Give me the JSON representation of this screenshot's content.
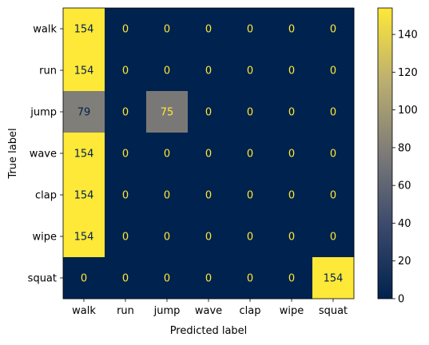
{
  "chart_data": {
    "type": "heatmap",
    "title": "",
    "xlabel": "Predicted label",
    "ylabel": "True label",
    "x_categories": [
      "walk",
      "run",
      "jump",
      "wave",
      "clap",
      "wipe",
      "squat"
    ],
    "y_categories": [
      "walk",
      "run",
      "jump",
      "wave",
      "clap",
      "wipe",
      "squat"
    ],
    "values": [
      [
        154,
        0,
        0,
        0,
        0,
        0,
        0
      ],
      [
        154,
        0,
        0,
        0,
        0,
        0,
        0
      ],
      [
        79,
        0,
        75,
        0,
        0,
        0,
        0
      ],
      [
        154,
        0,
        0,
        0,
        0,
        0,
        0
      ],
      [
        154,
        0,
        0,
        0,
        0,
        0,
        0
      ],
      [
        154,
        0,
        0,
        0,
        0,
        0,
        0
      ],
      [
        0,
        0,
        0,
        0,
        0,
        0,
        154
      ]
    ],
    "colormap": "cividis",
    "color_range": [
      0,
      154
    ],
    "colorbar_ticks": [
      0,
      20,
      40,
      60,
      80,
      100,
      120,
      140
    ],
    "grid": false,
    "colorbar_placement": "right"
  }
}
